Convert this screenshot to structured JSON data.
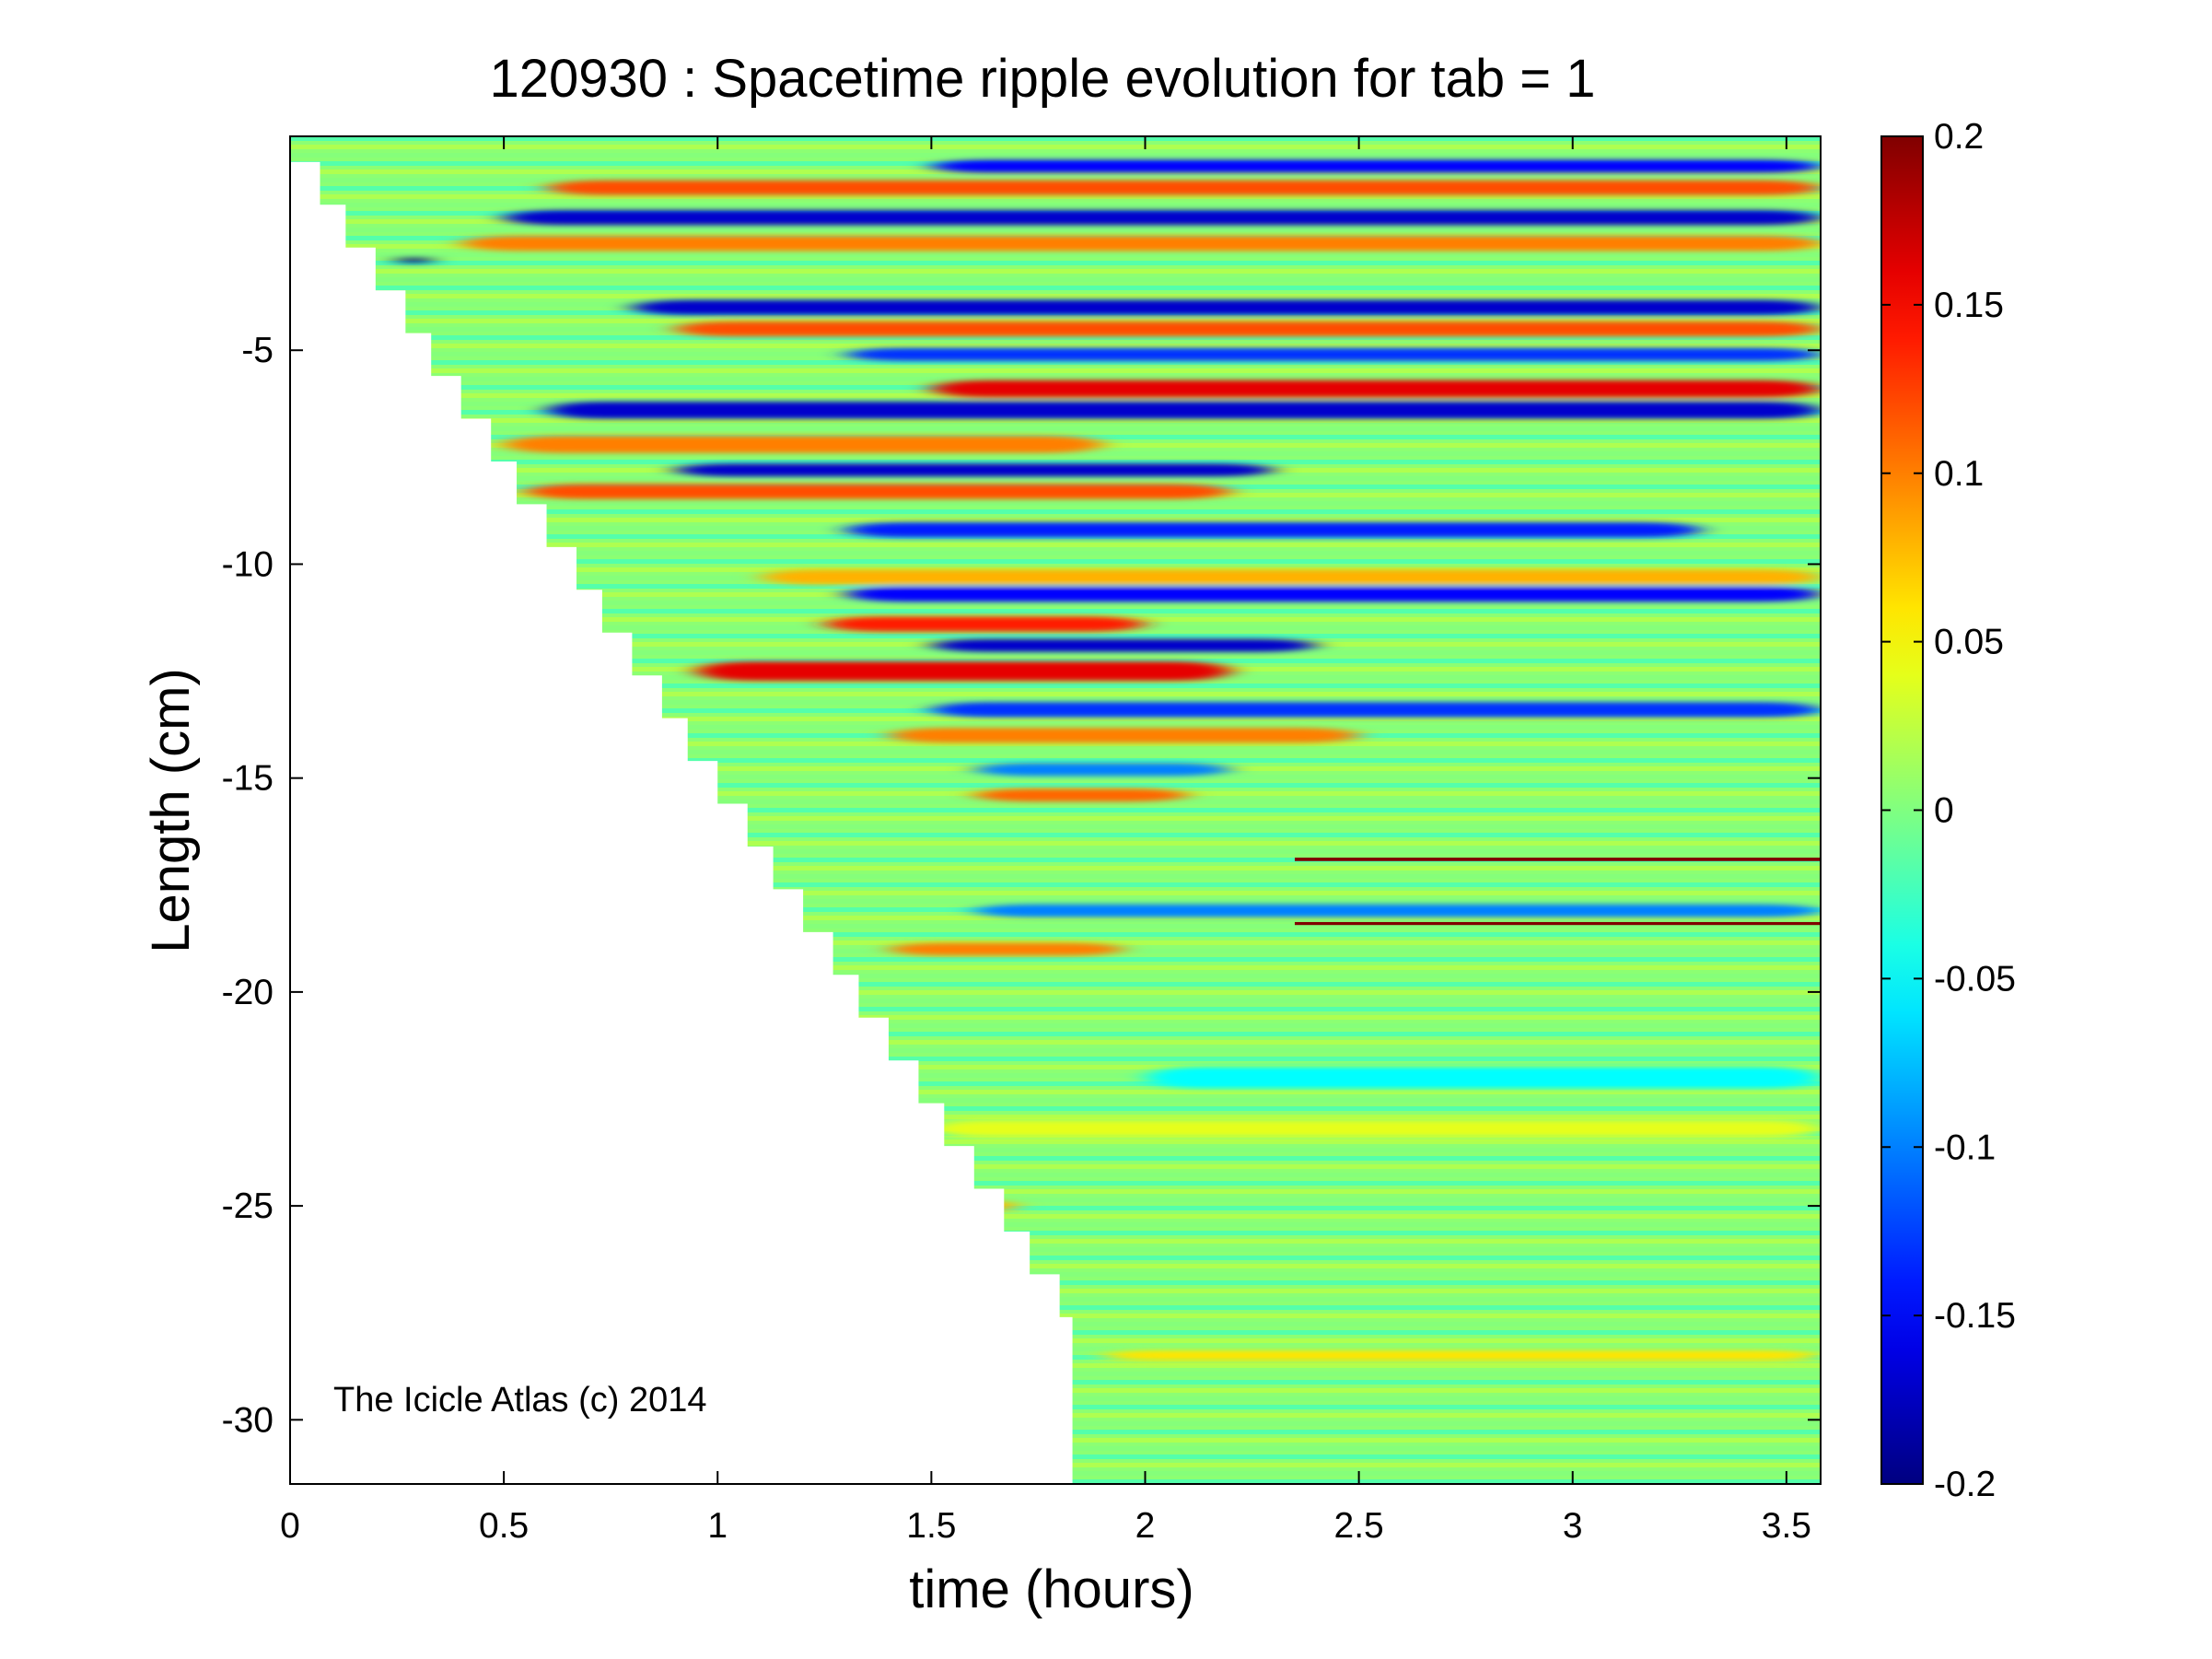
{
  "chart_data": {
    "type": "heatmap",
    "title": "120930 : Spacetime ripple evolution for tab = 1",
    "xlabel": "time (hours)",
    "ylabel": "Length (cm)",
    "xlim": [
      0,
      3.58
    ],
    "ylim": [
      -31.5,
      0
    ],
    "xticks": [
      0,
      0.5,
      1,
      1.5,
      2,
      2.5,
      3,
      3.5
    ],
    "xtick_labels": [
      "0",
      "0.5",
      "1",
      "1.5",
      "2",
      "2.5",
      "3",
      "3.5"
    ],
    "yticks": [
      -5,
      -10,
      -15,
      -20,
      -25,
      -30
    ],
    "ytick_labels": [
      "-5",
      "-10",
      "-15",
      "-20",
      "-25",
      "-30"
    ],
    "colormap": "jet",
    "clim": [
      -0.2,
      0.2
    ],
    "colorbar_ticks": [
      0.2,
      0.15,
      0.1,
      0.05,
      0,
      -0.05,
      -0.1,
      -0.15,
      -0.2
    ],
    "colorbar_tick_labels": [
      "0.2",
      "0.15",
      "0.1",
      "0.05",
      "0",
      "-0.05",
      "-0.1",
      "-0.15",
      "-0.2"
    ],
    "annotation": "The Icicle Atlas (c) 2014",
    "growth_front": {
      "description_of_values": "icicle tip length (cm) reached at given time (hours); data exists only above this front",
      "time": [
        0.0,
        0.07,
        0.13,
        0.2,
        0.27,
        0.33,
        0.4,
        0.47,
        0.53,
        0.6,
        0.67,
        0.73,
        0.8,
        0.87,
        0.93,
        1.0,
        1.07,
        1.13,
        1.2,
        1.27,
        1.33,
        1.4,
        1.47,
        1.53,
        1.6,
        1.67,
        1.73,
        1.8,
        1.83
      ],
      "length": [
        -0.6,
        -1.6,
        -2.6,
        -3.6,
        -4.6,
        -5.6,
        -6.6,
        -7.6,
        -8.6,
        -9.6,
        -10.6,
        -11.6,
        -12.6,
        -13.6,
        -14.6,
        -15.6,
        -16.6,
        -17.6,
        -18.6,
        -19.6,
        -20.6,
        -21.6,
        -22.6,
        -23.6,
        -24.6,
        -25.6,
        -26.6,
        -27.6,
        -31.5
      ]
    },
    "ripple_bands": [
      {
        "y": -1.2,
        "value": 0.12,
        "t_start": 0.6,
        "t_end": 3.58,
        "width": 0.35
      },
      {
        "y": -0.7,
        "value": -0.15,
        "t_start": 1.5,
        "t_end": 3.58,
        "width": 0.3
      },
      {
        "y": -1.9,
        "value": -0.17,
        "t_start": 0.5,
        "t_end": 3.58,
        "width": 0.35
      },
      {
        "y": -2.5,
        "value": 0.1,
        "t_start": 0.4,
        "t_end": 3.58,
        "width": 0.35
      },
      {
        "y": -2.9,
        "value": -0.2,
        "t_start": 0.25,
        "t_end": 0.33,
        "width": 0.15
      },
      {
        "y": -4.0,
        "value": -0.17,
        "t_start": 0.8,
        "t_end": 3.58,
        "width": 0.35
      },
      {
        "y": -4.5,
        "value": 0.12,
        "t_start": 0.9,
        "t_end": 3.58,
        "width": 0.35
      },
      {
        "y": -5.1,
        "value": -0.13,
        "t_start": 1.3,
        "t_end": 3.58,
        "width": 0.3
      },
      {
        "y": -5.9,
        "value": 0.16,
        "t_start": 1.5,
        "t_end": 3.58,
        "width": 0.4
      },
      {
        "y": -6.4,
        "value": -0.17,
        "t_start": 0.6,
        "t_end": 3.58,
        "width": 0.4
      },
      {
        "y": -7.2,
        "value": 0.1,
        "t_start": 0.5,
        "t_end": 1.9,
        "width": 0.4
      },
      {
        "y": -7.8,
        "value": -0.17,
        "t_start": 0.9,
        "t_end": 2.3,
        "width": 0.3
      },
      {
        "y": -8.3,
        "value": 0.12,
        "t_start": 0.55,
        "t_end": 2.2,
        "width": 0.35
      },
      {
        "y": -9.2,
        "value": -0.14,
        "t_start": 1.3,
        "t_end": 3.3,
        "width": 0.35
      },
      {
        "y": -10.3,
        "value": 0.08,
        "t_start": 1.1,
        "t_end": 3.58,
        "width": 0.35
      },
      {
        "y": -10.7,
        "value": -0.15,
        "t_start": 1.3,
        "t_end": 3.58,
        "width": 0.35
      },
      {
        "y": -11.4,
        "value": 0.14,
        "t_start": 1.25,
        "t_end": 2.0,
        "width": 0.35
      },
      {
        "y": -11.9,
        "value": -0.17,
        "t_start": 1.5,
        "t_end": 2.4,
        "width": 0.3
      },
      {
        "y": -12.5,
        "value": 0.16,
        "t_start": 0.95,
        "t_end": 2.2,
        "width": 0.45
      },
      {
        "y": -13.4,
        "value": -0.13,
        "t_start": 1.5,
        "t_end": 3.58,
        "width": 0.35
      },
      {
        "y": -14.0,
        "value": 0.1,
        "t_start": 1.4,
        "t_end": 2.5,
        "width": 0.35
      },
      {
        "y": -14.8,
        "value": -0.1,
        "t_start": 1.6,
        "t_end": 2.2,
        "width": 0.3
      },
      {
        "y": -15.4,
        "value": 0.11,
        "t_start": 1.6,
        "t_end": 2.1,
        "width": 0.3
      },
      {
        "y": -16.9,
        "value": 0.2,
        "t_start": 2.35,
        "t_end": 3.58,
        "width": 0.08
      },
      {
        "y": -18.1,
        "value": -0.1,
        "t_start": 1.6,
        "t_end": 3.58,
        "width": 0.3
      },
      {
        "y": -18.4,
        "value": 0.2,
        "t_start": 2.35,
        "t_end": 3.58,
        "width": 0.07
      },
      {
        "y": -19.0,
        "value": 0.1,
        "t_start": 1.4,
        "t_end": 1.95,
        "width": 0.3
      },
      {
        "y": -22.0,
        "value": -0.05,
        "t_start": 2.0,
        "t_end": 3.58,
        "width": 0.5
      },
      {
        "y": -23.2,
        "value": 0.04,
        "t_start": 1.5,
        "t_end": 3.58,
        "width": 0.4
      },
      {
        "y": -25.0,
        "value": 0.08,
        "t_start": 1.55,
        "t_end": 1.7,
        "width": 0.25
      },
      {
        "y": -28.5,
        "value": 0.06,
        "t_start": 1.9,
        "t_end": 3.58,
        "width": 0.25
      }
    ]
  }
}
